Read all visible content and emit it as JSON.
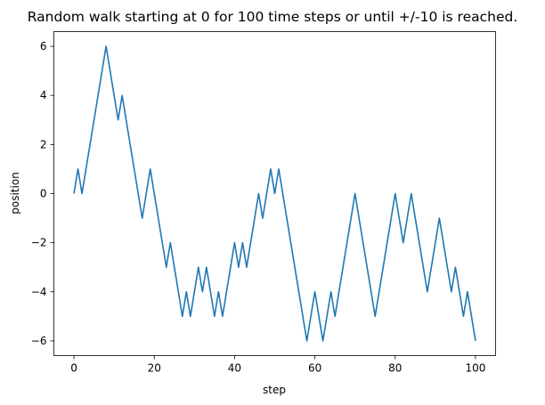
{
  "chart_data": {
    "type": "line",
    "title": "Random walk starting at 0 for 100 time steps or until +/-10 is reached.",
    "xlabel": "step",
    "ylabel": "position",
    "xlim": [
      -5,
      105
    ],
    "ylim": [
      -6.6,
      6.6
    ],
    "xticks": [
      0,
      20,
      40,
      60,
      80,
      100
    ],
    "yticks": [
      -6,
      -4,
      -2,
      0,
      2,
      4,
      6
    ],
    "grid": false,
    "legend": "none",
    "series": [
      {
        "color": "#1f77b4",
        "x": [
          0,
          1,
          2,
          3,
          4,
          5,
          6,
          7,
          8,
          9,
          10,
          11,
          12,
          13,
          14,
          15,
          16,
          17,
          18,
          19,
          20,
          21,
          22,
          23,
          24,
          25,
          26,
          27,
          28,
          29,
          30,
          31,
          32,
          33,
          34,
          35,
          36,
          37,
          38,
          39,
          40,
          41,
          42,
          43,
          44,
          45,
          46,
          47,
          48,
          49,
          50,
          51,
          52,
          53,
          54,
          55,
          56,
          57,
          58,
          59,
          60,
          61,
          62,
          63,
          64,
          65,
          66,
          67,
          68,
          69,
          70,
          71,
          72,
          73,
          74,
          75,
          76,
          77,
          78,
          79,
          80,
          81,
          82,
          83,
          84,
          85,
          86,
          87,
          88,
          89,
          90,
          91,
          92,
          93,
          94,
          95,
          96,
          97,
          98,
          99,
          100
        ],
        "values": [
          0,
          1,
          0,
          1,
          2,
          3,
          4,
          5,
          6,
          5,
          4,
          3,
          4,
          3,
          2,
          1,
          0,
          -1,
          0,
          1,
          0,
          -1,
          -2,
          -3,
          -2,
          -3,
          -4,
          -5,
          -4,
          -5,
          -4,
          -3,
          -4,
          -3,
          -4,
          -5,
          -4,
          -5,
          -4,
          -3,
          -2,
          -3,
          -2,
          -3,
          -2,
          -1,
          0,
          -1,
          0,
          1,
          0,
          1,
          0,
          -1,
          -2,
          -3,
          -4,
          -5,
          -6,
          -5,
          -4,
          -5,
          -6,
          -5,
          -4,
          -5,
          -4,
          -3,
          -2,
          -1,
          0,
          -1,
          -2,
          -3,
          -4,
          -5,
          -4,
          -3,
          -2,
          -1,
          0,
          -1,
          -2,
          -1,
          0,
          -1,
          -2,
          -3,
          -4,
          -3,
          -2,
          -1,
          -2,
          -3,
          -4,
          -3,
          -4,
          -5,
          -4,
          -5,
          -6
        ]
      }
    ]
  }
}
